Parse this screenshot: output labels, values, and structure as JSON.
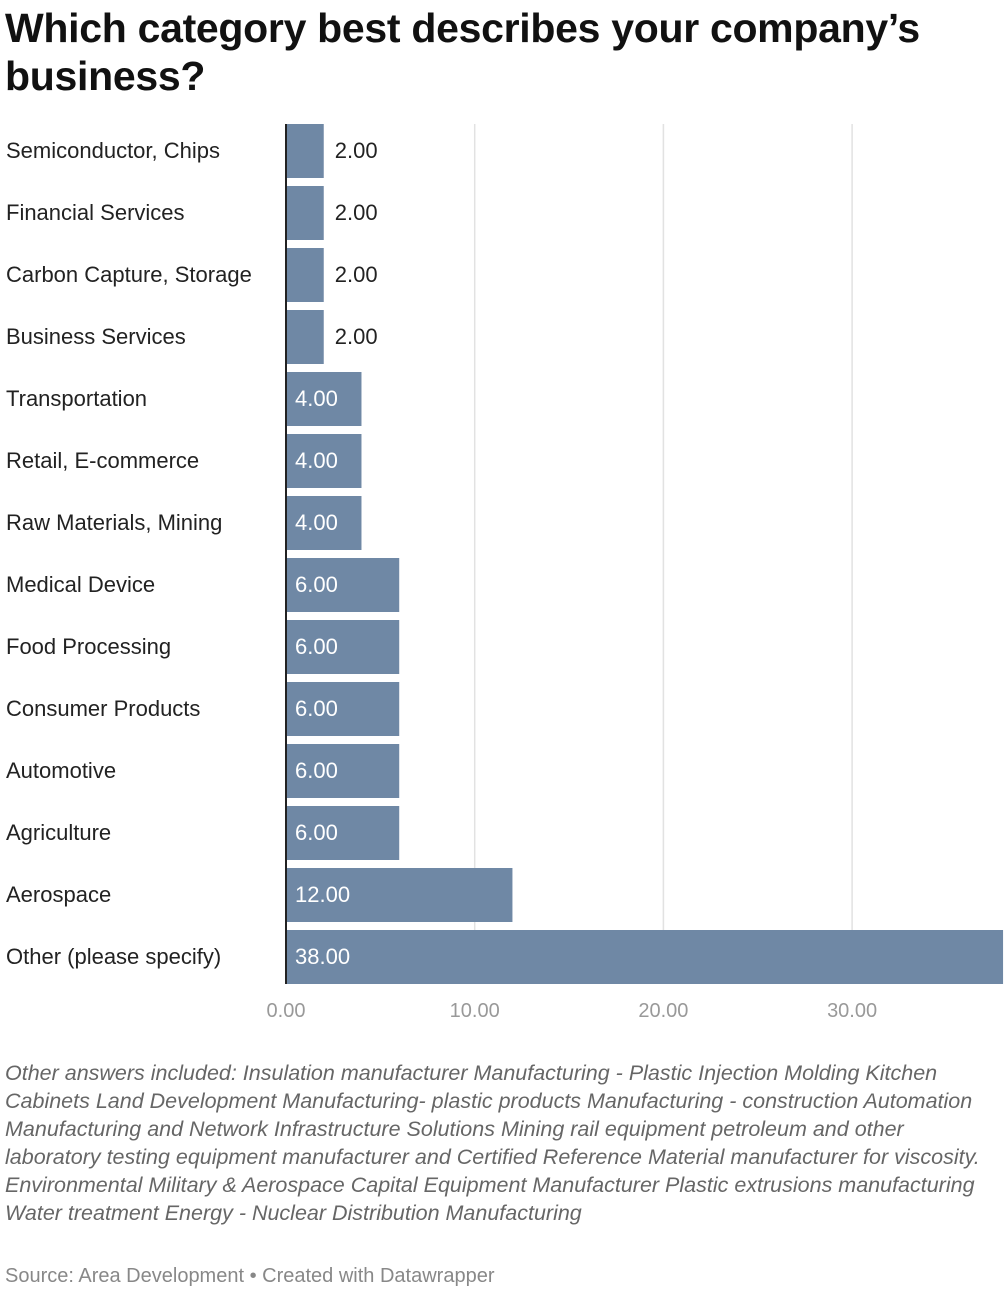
{
  "title": "Which category best describes your company’s business?",
  "notes": "Other answers included: Insulation manufacturer Manufacturing - Plastic Injection Molding Kitchen Cabinets Land Development Manufacturing- plastic products Manufacturing - construction Automation Manufacturing and Network Infrastructure Solutions Mining rail equipment petroleum and other laboratory testing equipment manufacturer and Certified Reference Material manufacturer for viscosity. Environmental Military & Aerospace Capital Equipment Manufacturer Plastic extrusions manufacturing Water treatment Energy - Nuclear Distribution Manufacturing",
  "source": "Source: Area Development • Created with Datawrapper",
  "chart_data": {
    "type": "bar",
    "orientation": "horizontal",
    "categories": [
      "Semiconductor, Chips",
      "Financial Services",
      "Carbon Capture, Storage",
      "Business Services",
      "Transportation",
      "Retail, E-commerce",
      "Raw Materials, Mining",
      "Medical Device",
      "Food Processing",
      "Consumer Products",
      "Automotive",
      "Agriculture",
      "Aerospace",
      "Other (please specify)"
    ],
    "values": [
      2,
      2,
      2,
      2,
      4,
      4,
      4,
      6,
      6,
      6,
      6,
      6,
      12,
      38
    ],
    "value_labels": [
      "2.00",
      "2.00",
      "2.00",
      "2.00",
      "4.00",
      "4.00",
      "4.00",
      "6.00",
      "6.00",
      "6.00",
      "6.00",
      "6.00",
      "12.00",
      "38.00"
    ],
    "xticks": [
      0,
      10,
      20,
      30
    ],
    "xtick_labels": [
      "0.00",
      "10.00",
      "20.00",
      "30.00"
    ],
    "xlim": [
      0,
      38
    ],
    "grid": true,
    "bar_color": "#6f88a5",
    "title": "Which category best describes your company’s business?"
  }
}
